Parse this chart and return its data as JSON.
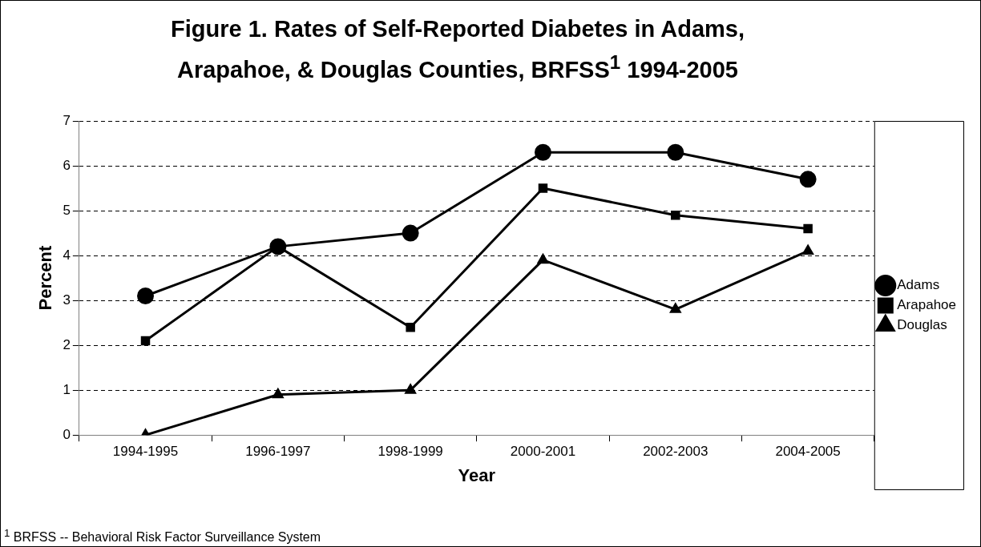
{
  "chart_data": {
    "type": "line",
    "title": "Figure 1.  Rates of Self-Reported Diabetes in Adams, Arapahoe, & Douglas Counties, BRFSS$^{1}$ 1994-2005",
    "xlabel": "Year",
    "ylabel": "Percent",
    "categories": [
      "1994-1995",
      "1996-1997",
      "1998-1999",
      "2000-2001",
      "2002-2003",
      "2004-2005"
    ],
    "series": [
      {
        "name": "Adams",
        "color": "#000000",
        "marker": "circle",
        "values": [
          3.1,
          4.2,
          4.5,
          6.3,
          6.3,
          5.7
        ]
      },
      {
        "name": "Arapahoe",
        "color": "#000000",
        "marker": "square",
        "values": [
          2.1,
          4.2,
          2.4,
          5.5,
          4.9,
          4.6
        ]
      },
      {
        "name": "Douglas",
        "color": "#000000",
        "marker": "triangle",
        "values": [
          0,
          0.9,
          1.0,
          3.9,
          2.8,
          4.1
        ]
      }
    ],
    "ylim": [
      0,
      7
    ],
    "yticks": [
      0,
      1,
      2,
      3,
      4,
      5,
      6,
      7
    ],
    "grid": "y",
    "legend": "right",
    "line_style": "solid",
    "annotations": [
      "$^{1}$ BRFSS -- Behavioral Risk Factor Surveillance System"
    ]
  }
}
